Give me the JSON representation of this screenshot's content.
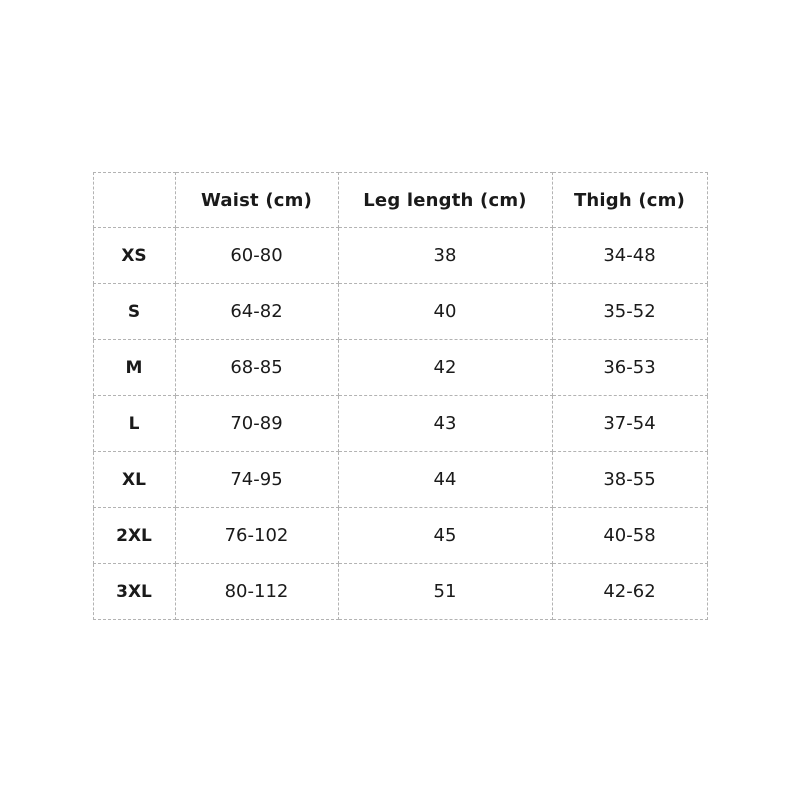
{
  "chart_data": {
    "type": "table",
    "title": "",
    "columns": [
      "",
      "Waist (cm)",
      "Leg length (cm)",
      "Thigh (cm)"
    ],
    "rows": [
      [
        "XS",
        "60-80",
        "38",
        "34-48"
      ],
      [
        "S",
        "64-82",
        "40",
        "35-52"
      ],
      [
        "M",
        "68-85",
        "42",
        "36-53"
      ],
      [
        "L",
        "70-89",
        "43",
        "37-54"
      ],
      [
        "XL",
        "74-95",
        "44",
        "38-55"
      ],
      [
        "2XL",
        "76-102",
        "45",
        "40-58"
      ],
      [
        "3XL",
        "80-112",
        "51",
        "42-62"
      ]
    ]
  },
  "style": {
    "border_color": "#b3b3b3",
    "text_color": "#1a1a1a",
    "background_color": "#ffffff"
  }
}
